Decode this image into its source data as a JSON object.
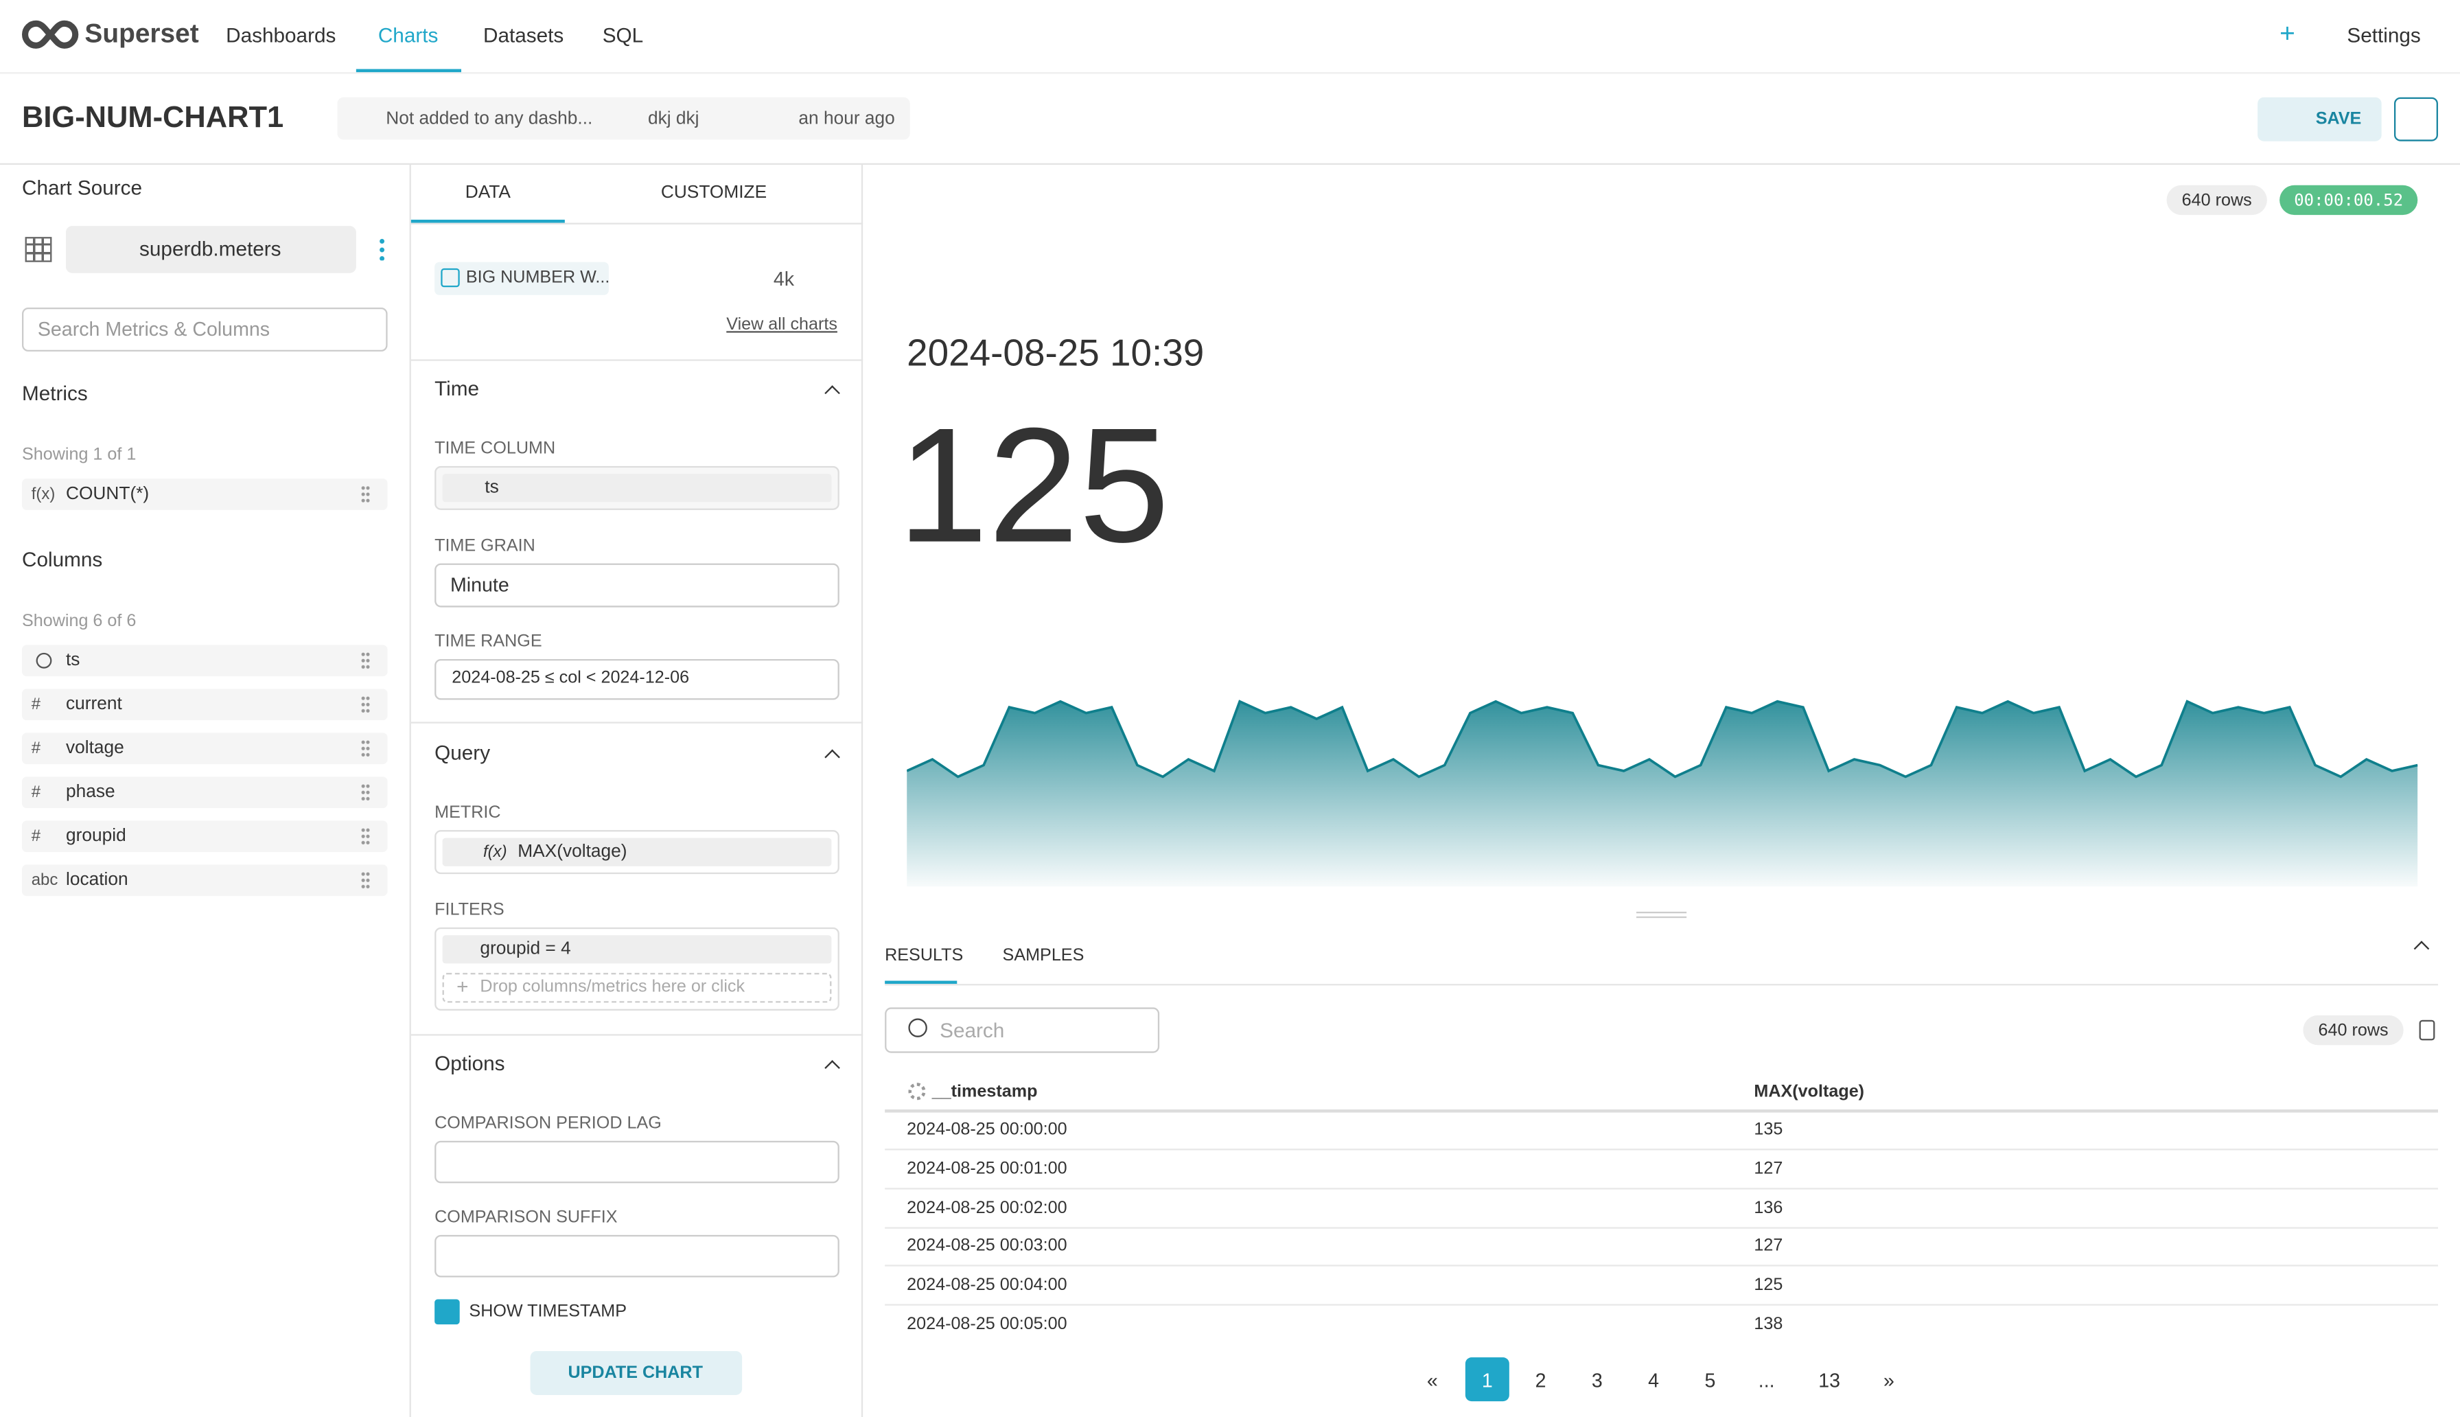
{
  "nav": {
    "brand": "Superset",
    "items": [
      "Dashboards",
      "Charts",
      "Datasets",
      "SQL"
    ],
    "plus": "+",
    "settings": "Settings"
  },
  "header": {
    "title": "BIG-NUM-CHART1",
    "dashboard": "Not added to any dashb...",
    "owner": "dkj dkj",
    "modified": "an hour ago",
    "save": "SAVE"
  },
  "source": {
    "title": "Chart Source",
    "dataset": "superdb.meters",
    "search_placeholder": "Search Metrics & Columns",
    "metrics_title": "Metrics",
    "metrics_showing": "Showing 1 of 1",
    "metrics": [
      {
        "icon": "f(x)",
        "name": "COUNT(*)"
      }
    ],
    "columns_title": "Columns",
    "columns_showing": "Showing 6 of 6",
    "columns": [
      {
        "name": "ts"
      },
      {
        "icon": "#",
        "name": "current"
      },
      {
        "icon": "#",
        "name": "voltage"
      },
      {
        "icon": "#",
        "name": "phase"
      },
      {
        "icon": "#",
        "name": "groupid"
      },
      {
        "icon": "abc",
        "name": "location"
      }
    ]
  },
  "controls": {
    "tabs": [
      "DATA",
      "CUSTOMIZE"
    ],
    "viz_name": "BIG NUMBER W...",
    "viz_extra": "4k",
    "view_all": "View all charts",
    "time": {
      "title": "Time",
      "time_column_label": "TIME COLUMN",
      "time_column": "ts",
      "time_grain_label": "TIME GRAIN",
      "time_grain": "Minute",
      "time_range_label": "TIME RANGE",
      "time_range": "2024-08-25 ≤ col < 2024-12-06"
    },
    "query": {
      "title": "Query",
      "metric_label": "METRIC",
      "metric_icon": "f(x)",
      "metric": "MAX(voltage)",
      "filters_label": "FILTERS",
      "filter": "groupid = 4",
      "drop_hint": "Drop columns/metrics here or click",
      "drop_plus": "+"
    },
    "options": {
      "title": "Options",
      "lag_label": "COMPARISON PERIOD LAG",
      "suffix_label": "COMPARISON SUFFIX",
      "show_timestamp": "SHOW TIMESTAMP"
    },
    "update": "UPDATE CHART"
  },
  "chart_data": {
    "type": "big_number",
    "rows_badge": "640 rows",
    "timer": "00:00:00.52",
    "timestamp": "2024-08-25 10:39",
    "big_number": 125,
    "color": "#0f7f8c",
    "trendline": [
      126,
      128,
      125,
      127,
      137,
      136,
      138,
      136,
      137,
      127,
      125,
      128,
      126,
      138,
      136,
      137,
      135,
      137,
      126,
      128,
      125,
      127,
      136,
      138,
      136,
      137,
      136,
      127,
      126,
      128,
      125,
      127,
      137,
      136,
      138,
      137,
      126,
      128,
      127,
      125,
      127,
      137,
      136,
      138,
      136,
      137,
      126,
      128,
      125,
      127,
      138,
      136,
      137,
      136,
      137,
      127,
      125,
      128,
      126,
      127
    ]
  },
  "results": {
    "tabs": [
      "RESULTS",
      "SAMPLES"
    ],
    "search_placeholder": "Search",
    "rows_badge": "640 rows",
    "columns": [
      "__timestamp",
      "MAX(voltage)"
    ],
    "rows": [
      [
        "2024-08-25 00:00:00",
        135
      ],
      [
        "2024-08-25 00:01:00",
        127
      ],
      [
        "2024-08-25 00:02:00",
        136
      ],
      [
        "2024-08-25 00:03:00",
        127
      ],
      [
        "2024-08-25 00:04:00",
        125
      ],
      [
        "2024-08-25 00:05:00",
        138
      ]
    ],
    "pagination": [
      "«",
      1,
      2,
      3,
      4,
      5,
      "...",
      13,
      "»"
    ],
    "current_page": 1
  }
}
